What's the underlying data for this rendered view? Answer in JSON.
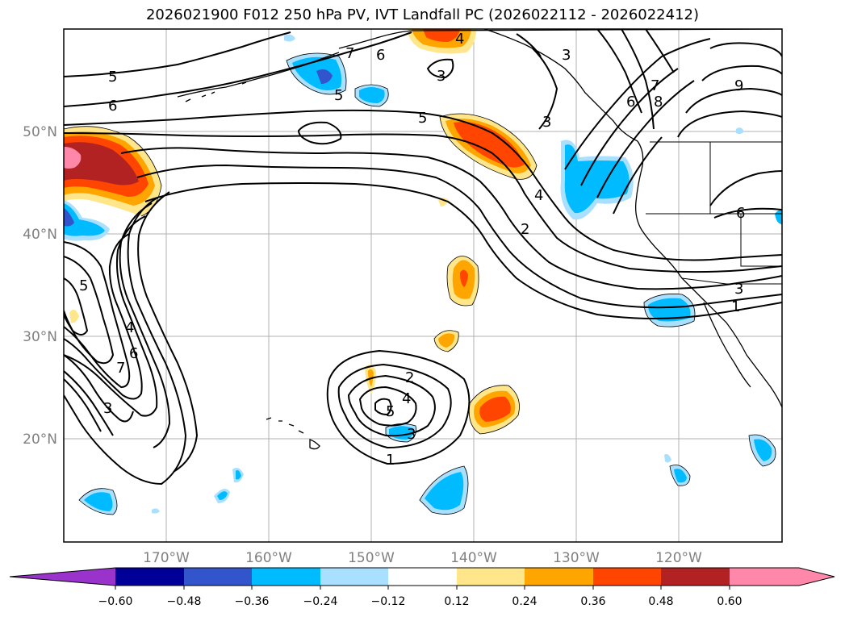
{
  "title": "2026021900 F012 250 hPa PV, IVT Landfall PC (2026022112 - 2026022412)",
  "map": {
    "lat_labels": [
      "50°N",
      "40°N",
      "30°N",
      "20°N"
    ],
    "lon_labels": [
      "170°W",
      "160°W",
      "150°W",
      "140°W",
      "130°W",
      "120°W"
    ],
    "label_color": "#808080",
    "gridlines": true
  },
  "contour_labels": [
    "5",
    "6",
    "7",
    "6",
    "4",
    "3",
    "3",
    "5",
    "5",
    "3",
    "7",
    "8",
    "6",
    "9",
    "4",
    "2",
    "6",
    "3",
    "1",
    "5",
    "4",
    "6",
    "7",
    "3",
    "2",
    "4",
    "5",
    "3",
    "1"
  ],
  "colorbar": {
    "tick_labels": [
      "−0.60",
      "−0.48",
      "−0.36",
      "−0.24",
      "−0.12",
      "0.12",
      "0.24",
      "0.36",
      "0.48",
      "0.60"
    ],
    "colors": [
      "#9933cc",
      "#000099",
      "#3355cc",
      "#00bbff",
      "#aae0ff",
      "#ffffff",
      "#ffe68a",
      "#ffa500",
      "#ff4500",
      "#b22222",
      "#ff88aa"
    ],
    "extend": "both"
  }
}
